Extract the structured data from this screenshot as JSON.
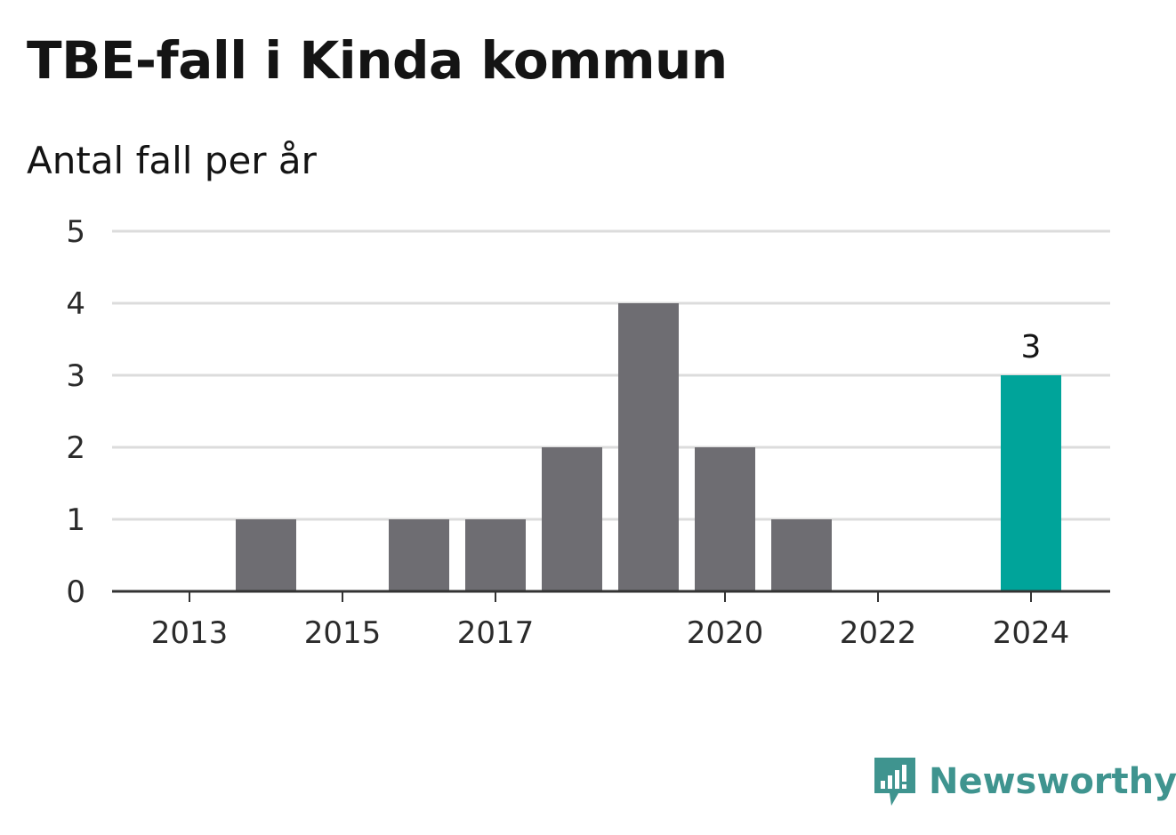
{
  "title": "TBE-fall i Kinda kommun",
  "subtitle": "Antal fall per år",
  "brand": "Newsworthy",
  "colors": {
    "bar": "#6e6d72",
    "highlight": "#00a49a",
    "grid": "#dcdcdc",
    "axis": "#333333",
    "brand": "#3f948f"
  },
  "chart_data": {
    "type": "bar",
    "categories": [
      "2013",
      "2014",
      "2015",
      "2016",
      "2017",
      "2018",
      "2019",
      "2020",
      "2021",
      "2022",
      "2023",
      "2024"
    ],
    "values": [
      0,
      1,
      0,
      1,
      1,
      2,
      4,
      2,
      1,
      0,
      0,
      3
    ],
    "highlight_category": "2024",
    "data_labels": [
      {
        "category": "2024",
        "text": "3"
      }
    ],
    "x_tick_labels": [
      "2013",
      "2015",
      "2017",
      "2020",
      "2022",
      "2024"
    ],
    "y_ticks": [
      0,
      1,
      2,
      3,
      4,
      5
    ],
    "ylim": [
      0,
      5
    ],
    "title": "TBE-fall i Kinda kommun",
    "subtitle": "Antal fall per år",
    "xlabel": "",
    "ylabel": "",
    "grid": true,
    "legend": "none"
  }
}
